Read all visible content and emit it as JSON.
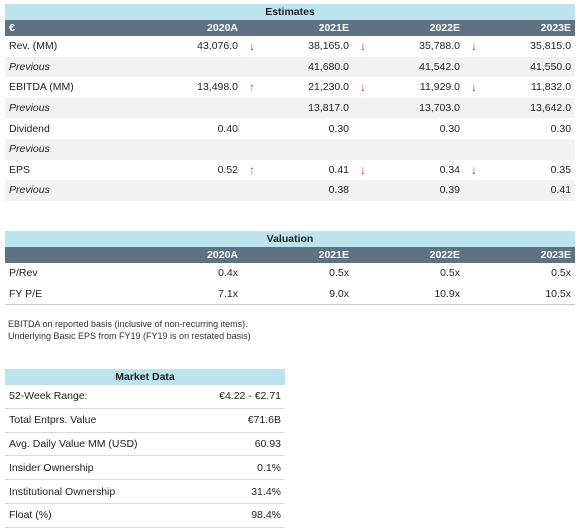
{
  "estimates": {
    "title": "Estimates",
    "columns": [
      "€",
      "2020A",
      "2021E",
      "2022E",
      "2023E"
    ],
    "rows": [
      {
        "label": "Rev. (MM)",
        "italic": false,
        "values": [
          "43,076.0",
          "38,165.0",
          "35,788.0",
          "35,815.0"
        ],
        "arrows": [
          "",
          "down",
          "down",
          "down"
        ]
      },
      {
        "label": "Previous",
        "italic": true,
        "values": [
          "",
          "41,680.0",
          "41,542.0",
          "41,550.0"
        ],
        "arrows": [
          "",
          "",
          "",
          ""
        ]
      },
      {
        "label": "EBITDA (MM)",
        "italic": false,
        "values": [
          "13,498.0",
          "21,230.0",
          "11,929.0",
          "11,832.0"
        ],
        "arrows": [
          "",
          "up",
          "down",
          "down"
        ]
      },
      {
        "label": "Previous",
        "italic": true,
        "values": [
          "",
          "13,817.0",
          "13,703.0",
          "13,642.0"
        ],
        "arrows": [
          "",
          "",
          "",
          ""
        ]
      },
      {
        "label": "Dividend",
        "italic": false,
        "values": [
          "0.40",
          "0.30",
          "0.30",
          "0.30"
        ],
        "arrows": [
          "",
          "",
          "",
          ""
        ]
      },
      {
        "label": "Previous",
        "italic": true,
        "values": [
          "",
          "",
          "",
          ""
        ],
        "arrows": [
          "",
          "",
          "",
          ""
        ]
      },
      {
        "label": "EPS",
        "italic": false,
        "values": [
          "0.52",
          "0.41",
          "0.34",
          "0.35"
        ],
        "arrows": [
          "",
          "up",
          "down",
          "down"
        ]
      },
      {
        "label": "Previous",
        "italic": true,
        "values": [
          "",
          "0.38",
          "0.39",
          "0.41"
        ],
        "arrows": [
          "",
          "",
          "",
          ""
        ]
      }
    ]
  },
  "valuation": {
    "title": "Valuation",
    "columns": [
      "",
      "2020A",
      "2021E",
      "2022E",
      "2023E"
    ],
    "rows": [
      {
        "label": "P/Rev",
        "values": [
          "0.4x",
          "0.5x",
          "0.5x",
          "0.5x"
        ]
      },
      {
        "label": "FY P/E",
        "values": [
          "7.1x",
          "9.0x",
          "10.9x",
          "10.5x"
        ]
      }
    ],
    "notes": [
      "EBITDA on reported basis (inclusive of non-recurring items).",
      "Underlying Basic EPS from FY19 (FY19 is on restated basis)"
    ]
  },
  "market": {
    "title": "Market Data",
    "rows": [
      {
        "label": "52-Week Range:",
        "value": "€4.22 - €2.71"
      },
      {
        "label": "Total Entprs. Value",
        "value": "€71.6B"
      },
      {
        "label": "Avg. Daily Value MM (USD)",
        "value": "60.93"
      },
      {
        "label": "Insider Ownership",
        "value": "0.1%"
      },
      {
        "label": "Institutional Ownership",
        "value": "31.4%"
      },
      {
        "label": "Float (%)",
        "value": "98.4%"
      }
    ]
  },
  "colors": {
    "title_band": "#bde3ef",
    "header_band": "#5e7283",
    "arrow_up": "#2e9e3a",
    "arrow_down": "#d0202a"
  },
  "icons": {
    "up": "arrow-up-icon",
    "down": "arrow-down-icon"
  }
}
